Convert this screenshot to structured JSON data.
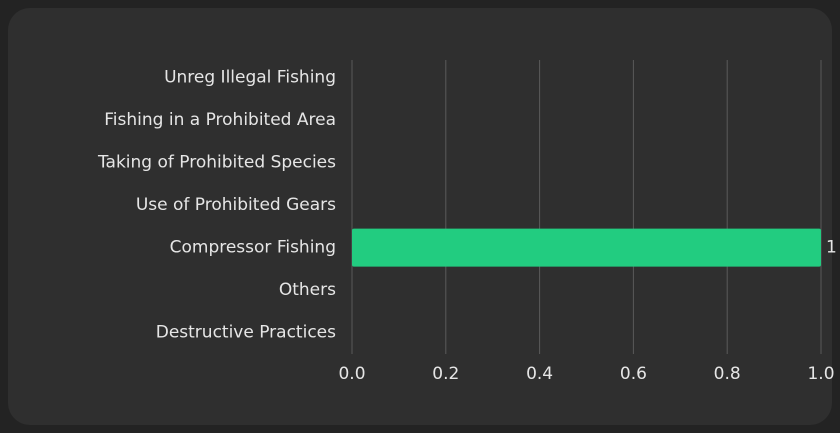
{
  "chart_data": {
    "type": "bar",
    "orientation": "horizontal",
    "categories": [
      "Unreg Illegal Fishing",
      "Fishing in a Prohibited Area",
      "Taking of Prohibited Species",
      "Use of Prohibited Gears",
      "Compressor Fishing",
      "Others",
      "Destructive Practices"
    ],
    "values": [
      0,
      0,
      0,
      0,
      1,
      0,
      0
    ],
    "value_labels": [
      null,
      null,
      null,
      null,
      "1",
      null,
      null
    ],
    "color": "#22cc80",
    "xlim": [
      0,
      1
    ],
    "xticks": [
      {
        "value": 0,
        "label": "0.0"
      },
      0.2,
      0.4,
      0.6,
      0.8,
      {
        "value": 1,
        "label": "1.0"
      }
    ],
    "grid": true
  }
}
